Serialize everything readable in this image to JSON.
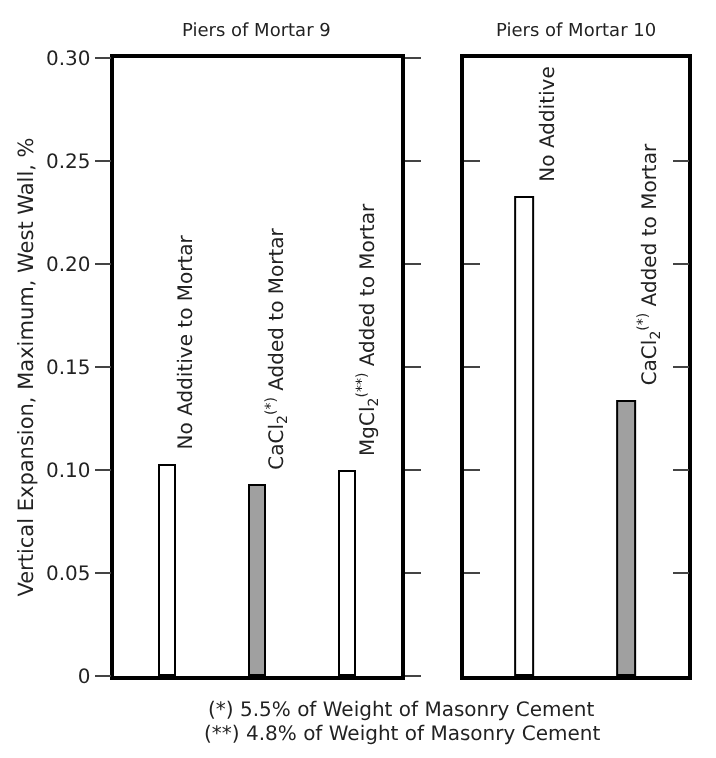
{
  "chart_data": [
    {
      "type": "bar",
      "title": "Piers of Mortar 9",
      "ylabel": "Vertical Expansion, Maximum, West Wall, %",
      "categories": [
        "No Additive to Mortar",
        "CaCl$_{2}$$^{(*)}$ Added to Mortar",
        "MgCl$_{2}$$^{(**)}$ Added to Mortar"
      ],
      "values": [
        0.102,
        0.092,
        0.099
      ],
      "colors": [
        "#ffffff",
        "#a0a0a0",
        "#ffffff"
      ],
      "ylim": [
        0,
        0.3
      ],
      "yticks": [
        0,
        0.05,
        {
          "value": 0.1,
          "label": "0.10"
        },
        0.15,
        {
          "value": 0.2,
          "label": "0.20"
        },
        0.25,
        {
          "value": 0.3,
          "label": "0.30"
        }
      ],
      "tick_labels": "y",
      "annotations": [
        "(*) 5.5% of Weight of Masonry Cement",
        "(**) 4.8% of Weight of Masonry Cement"
      ]
    },
    {
      "type": "bar",
      "title": "Piers of Mortar 10",
      "categories": [
        "No Additive",
        "CaCl$_{2}$$^{(*)}$ Added to Mortar"
      ],
      "values": [
        0.232,
        0.133
      ],
      "colors": [
        "#ffffff",
        "#a0a0a0"
      ],
      "ylim": [
        0,
        0.3
      ],
      "yticks": [
        0,
        0.05,
        0.1,
        0.15,
        0.2,
        0.25,
        0.3
      ],
      "tick_labels": false
    }
  ]
}
